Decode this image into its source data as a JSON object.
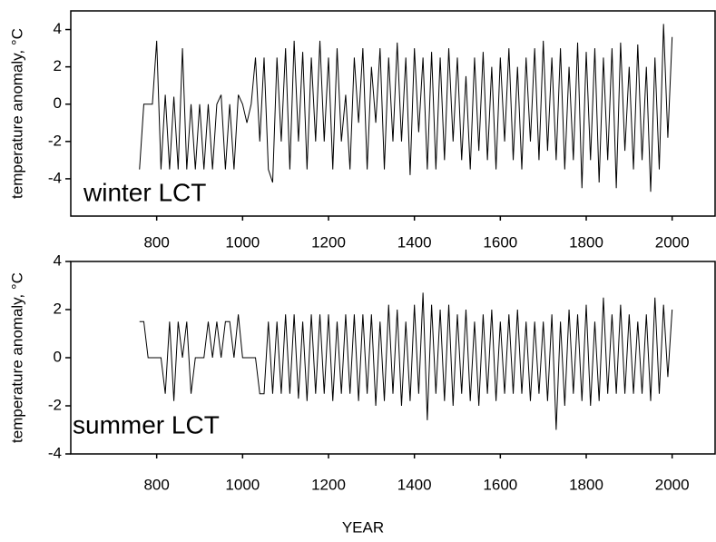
{
  "chart_data": [
    {
      "type": "line",
      "ylabel": "temperature anomaly, °C",
      "annotation": "winter LCT",
      "xlim": [
        600,
        2100
      ],
      "xticks": [
        800,
        1000,
        1200,
        1400,
        1600,
        1800,
        2000
      ],
      "ylim": [
        -6,
        5
      ],
      "yticks": [
        -4,
        -2,
        0,
        2,
        4
      ],
      "color": "#000000",
      "x": [
        760,
        770,
        780,
        790,
        800,
        810,
        820,
        830,
        840,
        850,
        860,
        870,
        880,
        890,
        900,
        910,
        920,
        930,
        940,
        950,
        960,
        970,
        980,
        990,
        1000,
        1010,
        1020,
        1030,
        1040,
        1050,
        1060,
        1070,
        1080,
        1090,
        1100,
        1110,
        1120,
        1130,
        1140,
        1150,
        1160,
        1170,
        1180,
        1190,
        1200,
        1210,
        1220,
        1230,
        1240,
        1250,
        1260,
        1270,
        1280,
        1290,
        1300,
        1310,
        1320,
        1330,
        1340,
        1350,
        1360,
        1370,
        1380,
        1390,
        1400,
        1410,
        1420,
        1430,
        1440,
        1450,
        1460,
        1470,
        1480,
        1490,
        1500,
        1510,
        1520,
        1530,
        1540,
        1550,
        1560,
        1570,
        1580,
        1590,
        1600,
        1610,
        1620,
        1630,
        1640,
        1650,
        1660,
        1670,
        1680,
        1690,
        1700,
        1710,
        1720,
        1730,
        1740,
        1750,
        1760,
        1770,
        1780,
        1790,
        1800,
        1810,
        1820,
        1830,
        1840,
        1850,
        1860,
        1870,
        1880,
        1890,
        1900,
        1910,
        1920,
        1930,
        1940,
        1950,
        1960,
        1970,
        1980,
        1990,
        2000
      ],
      "values": [
        -3.5,
        0,
        0,
        0,
        3.4,
        -3.5,
        0.5,
        -3.5,
        0.4,
        -3.5,
        3,
        -3.5,
        0,
        -3.5,
        0,
        -3.5,
        0,
        -3.5,
        0,
        0.5,
        -3.5,
        0,
        -3.5,
        0.5,
        0,
        -1,
        0,
        2.5,
        -2,
        2.5,
        -3.5,
        -4.2,
        2.5,
        -2,
        3,
        -3.5,
        3.4,
        -2,
        2.8,
        -3.5,
        2.5,
        -2,
        3.4,
        -2,
        2.5,
        -3.5,
        3,
        -2,
        0.5,
        -3.5,
        2.5,
        -1,
        3,
        -3.5,
        2,
        -1,
        3,
        -3.5,
        2.5,
        -2,
        3.3,
        -2,
        2.5,
        -3.8,
        3,
        -1.5,
        2.5,
        -3.5,
        2.8,
        -3.5,
        2.5,
        -3,
        3,
        -2,
        2.5,
        -3,
        1.5,
        -3.5,
        2.5,
        -2.5,
        2.8,
        -3,
        2,
        -3.5,
        2.5,
        -2,
        3,
        -3,
        2,
        -3.5,
        2.5,
        -2,
        3,
        -3,
        3.4,
        -2.5,
        2.5,
        -3,
        3,
        -3.5,
        2,
        -3,
        3.3,
        -4.5,
        2.8,
        -3,
        3,
        -4.2,
        2.5,
        -3,
        3,
        -4.5,
        3.3,
        -2.5,
        2,
        -3.5,
        3.2,
        -3,
        2,
        -4.7,
        2.5,
        -3.5,
        4.3,
        -1.8,
        3.6
      ]
    },
    {
      "type": "line",
      "ylabel": "temperature anomaly, °C",
      "annotation": "summer LCT",
      "xlabel": "YEAR",
      "xlim": [
        600,
        2100
      ],
      "xticks": [
        800,
        1000,
        1200,
        1400,
        1600,
        1800,
        2000
      ],
      "ylim": [
        -4,
        4
      ],
      "yticks": [
        -4,
        -2,
        0,
        2,
        4
      ],
      "color": "#000000",
      "x": [
        760,
        770,
        780,
        790,
        800,
        810,
        820,
        830,
        840,
        850,
        860,
        870,
        880,
        890,
        900,
        910,
        920,
        930,
        940,
        950,
        960,
        970,
        980,
        990,
        1000,
        1010,
        1020,
        1030,
        1040,
        1050,
        1060,
        1070,
        1080,
        1090,
        1100,
        1110,
        1120,
        1130,
        1140,
        1150,
        1160,
        1170,
        1180,
        1190,
        1200,
        1210,
        1220,
        1230,
        1240,
        1250,
        1260,
        1270,
        1280,
        1290,
        1300,
        1310,
        1320,
        1330,
        1340,
        1350,
        1360,
        1370,
        1380,
        1390,
        1400,
        1410,
        1420,
        1430,
        1440,
        1450,
        1460,
        1470,
        1480,
        1490,
        1500,
        1510,
        1520,
        1530,
        1540,
        1550,
        1560,
        1570,
        1580,
        1590,
        1600,
        1610,
        1620,
        1630,
        1640,
        1650,
        1660,
        1670,
        1680,
        1690,
        1700,
        1710,
        1720,
        1730,
        1740,
        1750,
        1760,
        1770,
        1780,
        1790,
        1800,
        1810,
        1820,
        1830,
        1840,
        1850,
        1860,
        1870,
        1880,
        1890,
        1900,
        1910,
        1920,
        1930,
        1940,
        1950,
        1960,
        1970,
        1980,
        1990,
        2000
      ],
      "values": [
        1.5,
        1.5,
        0,
        0,
        0,
        0,
        -1.5,
        1.5,
        -1.8,
        1.5,
        0,
        1.5,
        -1.5,
        0,
        0,
        0,
        1.5,
        0,
        1.5,
        0,
        1.5,
        1.5,
        0,
        1.8,
        0,
        0,
        0,
        0,
        -1.5,
        -1.5,
        1.5,
        -1.5,
        1.5,
        -1.5,
        1.8,
        -1.5,
        1.8,
        -1.7,
        1.5,
        -1.8,
        1.8,
        -1.5,
        1.8,
        -1.5,
        1.8,
        -1.8,
        1.5,
        -1.5,
        1.8,
        -1.5,
        1.8,
        -1.8,
        1.8,
        -1.5,
        1.8,
        -2,
        1.5,
        -1.8,
        2.2,
        -1.5,
        2,
        -2,
        1.5,
        -1.8,
        2.2,
        -1.5,
        2.7,
        -2.6,
        2.2,
        -1.5,
        2,
        -1.8,
        2.2,
        -2,
        1.8,
        -1.5,
        2,
        -1.8,
        1.5,
        -2,
        1.8,
        -1.5,
        2,
        -1.8,
        1.5,
        -1.5,
        1.8,
        -1.5,
        2,
        -1.5,
        1.5,
        -1.8,
        1.5,
        -1.5,
        1.5,
        -1.8,
        1.8,
        -3,
        1.5,
        -2,
        2,
        -1.5,
        1.8,
        -1.8,
        2.2,
        -2,
        1.5,
        -1.8,
        2.5,
        -1.5,
        1.8,
        -1.5,
        2.2,
        -1.5,
        1.8,
        -1.5,
        1.5,
        -1.5,
        1.8,
        -1.8,
        2.5,
        -1.5,
        2.2,
        -0.8,
        2
      ]
    }
  ]
}
